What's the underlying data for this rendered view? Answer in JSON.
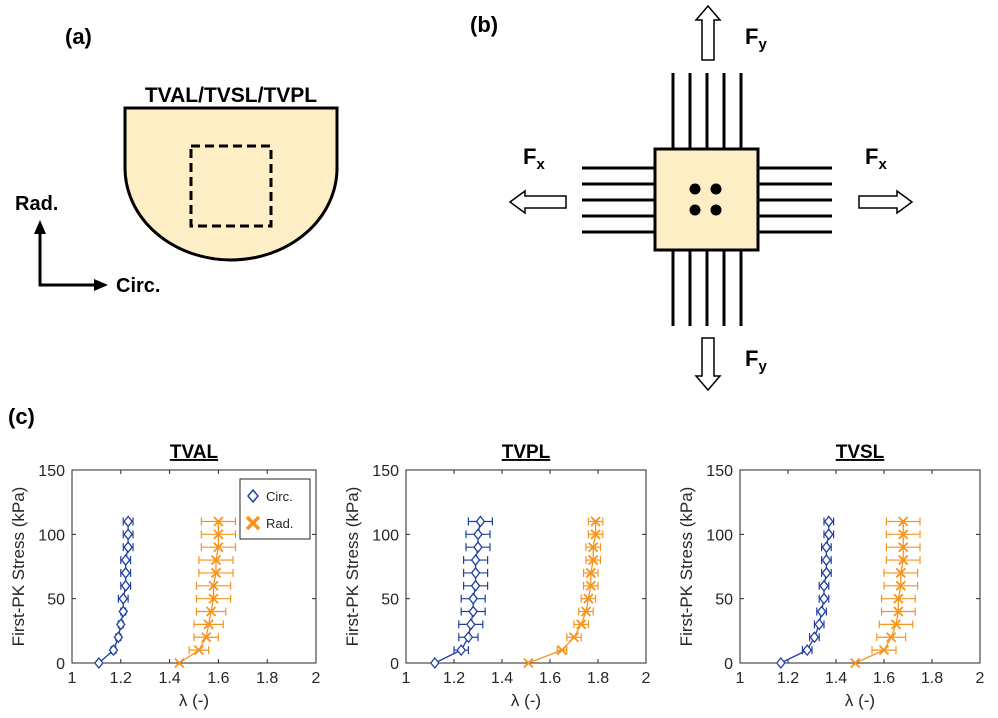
{
  "panel_a": {
    "label": "(a)",
    "title": "TVAL/TVSL/TVPL",
    "axis_vertical": "Rad.",
    "axis_horizontal": "Circ.",
    "colors": {
      "tissue_fill": "#fdeec6",
      "stroke": "#000000"
    }
  },
  "panel_b": {
    "label": "(b)",
    "force_x": {
      "main": "F",
      "sub": "x"
    },
    "force_y": {
      "main": "F",
      "sub": "y"
    },
    "colors": {
      "tissue_fill": "#fdeec6",
      "stroke": "#000000"
    }
  },
  "panel_c": {
    "label": "(c)",
    "legend": [
      {
        "label": "Circ.",
        "color": "#1f3fa0",
        "marker": "diamond"
      },
      {
        "label": "Rad.",
        "color": "#f7941d",
        "marker": "x"
      }
    ]
  },
  "chart_data": [
    {
      "type": "line",
      "title": "TVAL",
      "xlabel": "λ (-)",
      "ylabel": "First-PK Stress (kPa)",
      "xlim": [
        1,
        2
      ],
      "ylim": [
        0,
        150
      ],
      "xticks": [
        "1",
        "1.2",
        "1.4",
        "1.6",
        "1.8",
        "2"
      ],
      "yticks": [
        "0",
        "50",
        "100",
        "150"
      ],
      "legend_position": "top-right",
      "series": [
        {
          "name": "Circ.",
          "color": "#1f3fa0",
          "marker": "diamond",
          "y": [
            0,
            10,
            20,
            30,
            40,
            50,
            60,
            70,
            80,
            90,
            100,
            110
          ],
          "x": [
            1.11,
            1.17,
            1.19,
            1.2,
            1.21,
            1.21,
            1.22,
            1.22,
            1.22,
            1.23,
            1.23,
            1.23
          ],
          "xerr": [
            0,
            0.01,
            0.01,
            0.01,
            0.01,
            0.02,
            0.02,
            0.02,
            0.02,
            0.02,
            0.02,
            0.02
          ]
        },
        {
          "name": "Rad.",
          "color": "#f7941d",
          "marker": "x",
          "y": [
            0,
            10,
            20,
            30,
            40,
            50,
            60,
            70,
            80,
            90,
            100,
            110
          ],
          "x": [
            1.44,
            1.52,
            1.55,
            1.56,
            1.57,
            1.58,
            1.58,
            1.59,
            1.59,
            1.6,
            1.6,
            1.6
          ],
          "xerr": [
            0,
            0.04,
            0.05,
            0.06,
            0.06,
            0.07,
            0.07,
            0.07,
            0.07,
            0.07,
            0.07,
            0.07
          ]
        }
      ]
    },
    {
      "type": "line",
      "title": "TVPL",
      "xlabel": "λ (-)",
      "ylabel": "First-PK Stress (kPa)",
      "xlim": [
        1,
        2
      ],
      "ylim": [
        0,
        150
      ],
      "xticks": [
        "1",
        "1.2",
        "1.4",
        "1.6",
        "1.8",
        "2"
      ],
      "yticks": [
        "0",
        "50",
        "100",
        "150"
      ],
      "series": [
        {
          "name": "Circ.",
          "color": "#1f3fa0",
          "marker": "diamond",
          "y": [
            0,
            10,
            20,
            30,
            40,
            50,
            60,
            70,
            80,
            90,
            100,
            110
          ],
          "x": [
            1.12,
            1.23,
            1.26,
            1.27,
            1.28,
            1.28,
            1.29,
            1.29,
            1.29,
            1.3,
            1.3,
            1.31
          ],
          "xerr": [
            0,
            0.03,
            0.04,
            0.05,
            0.05,
            0.05,
            0.05,
            0.05,
            0.05,
            0.05,
            0.05,
            0.05
          ]
        },
        {
          "name": "Rad.",
          "color": "#f7941d",
          "marker": "x",
          "y": [
            0,
            10,
            20,
            30,
            40,
            50,
            60,
            70,
            80,
            90,
            100,
            110
          ],
          "x": [
            1.51,
            1.65,
            1.7,
            1.73,
            1.75,
            1.76,
            1.77,
            1.77,
            1.78,
            1.78,
            1.79,
            1.79
          ],
          "xerr": [
            0,
            0.02,
            0.03,
            0.03,
            0.03,
            0.03,
            0.03,
            0.03,
            0.03,
            0.03,
            0.03,
            0.03
          ]
        }
      ]
    },
    {
      "type": "line",
      "title": "TVSL",
      "xlabel": "λ (-)",
      "ylabel": "First-PK Stress (kPa)",
      "xlim": [
        1,
        2
      ],
      "ylim": [
        0,
        150
      ],
      "xticks": [
        "1",
        "1.2",
        "1.4",
        "1.6",
        "1.8",
        "2"
      ],
      "yticks": [
        "0",
        "50",
        "100",
        "150"
      ],
      "series": [
        {
          "name": "Circ.",
          "color": "#1f3fa0",
          "marker": "diamond",
          "y": [
            0,
            10,
            20,
            30,
            40,
            50,
            60,
            70,
            80,
            90,
            100,
            110
          ],
          "x": [
            1.17,
            1.28,
            1.31,
            1.33,
            1.34,
            1.35,
            1.35,
            1.36,
            1.36,
            1.36,
            1.37,
            1.37
          ],
          "xerr": [
            0,
            0.02,
            0.02,
            0.02,
            0.02,
            0.02,
            0.02,
            0.02,
            0.02,
            0.02,
            0.02,
            0.02
          ]
        },
        {
          "name": "Rad.",
          "color": "#f7941d",
          "marker": "x",
          "y": [
            0,
            10,
            20,
            30,
            40,
            50,
            60,
            70,
            80,
            90,
            100,
            110
          ],
          "x": [
            1.48,
            1.6,
            1.63,
            1.65,
            1.66,
            1.66,
            1.67,
            1.67,
            1.68,
            1.68,
            1.68,
            1.68
          ],
          "xerr": [
            0,
            0.05,
            0.06,
            0.07,
            0.07,
            0.07,
            0.07,
            0.07,
            0.07,
            0.07,
            0.07,
            0.07
          ]
        }
      ]
    }
  ]
}
